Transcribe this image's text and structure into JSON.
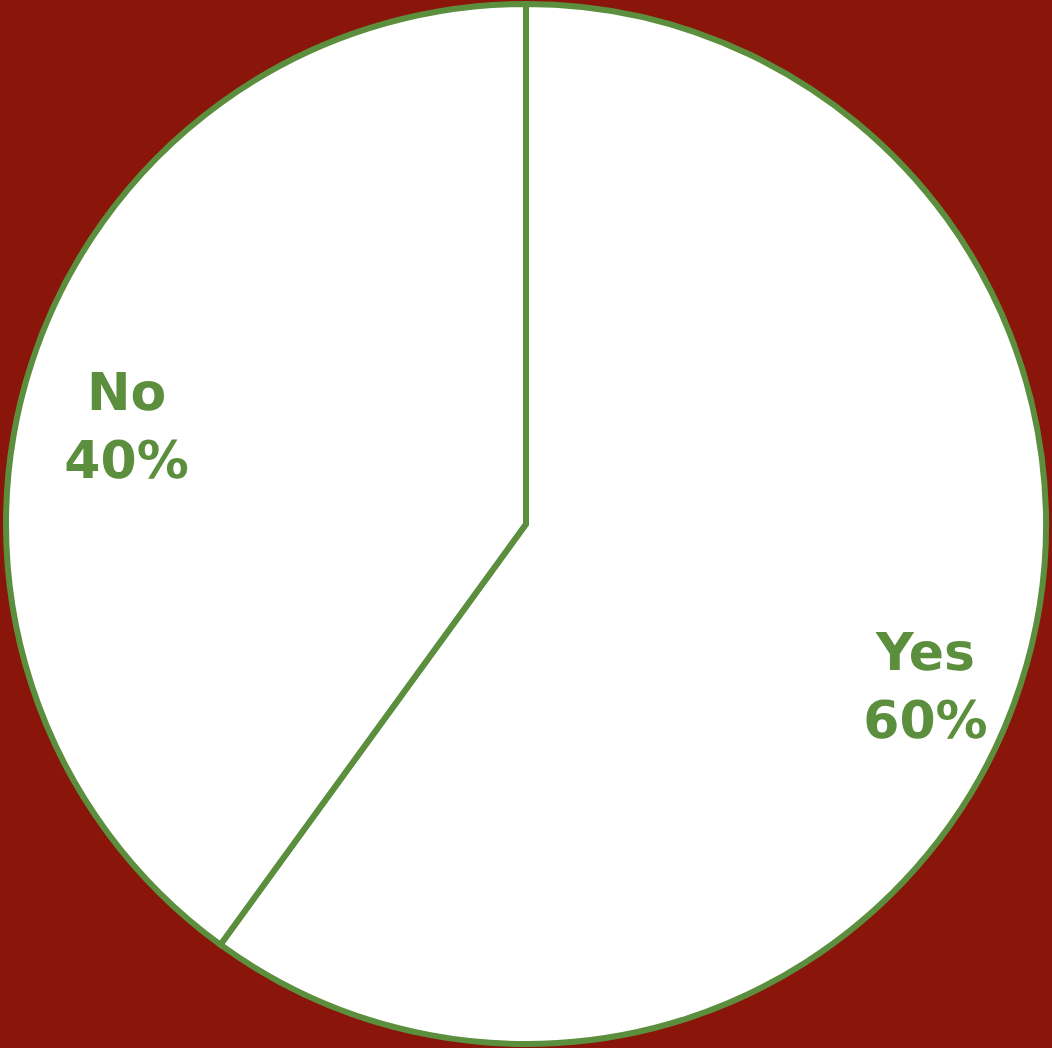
{
  "chart_data": {
    "type": "pie",
    "categories": [
      "Yes",
      "No"
    ],
    "values": [
      60,
      40
    ],
    "colors": [
      "#ffffff",
      "#ffffff"
    ],
    "value_labels": [
      "60%",
      "40%"
    ]
  }
}
